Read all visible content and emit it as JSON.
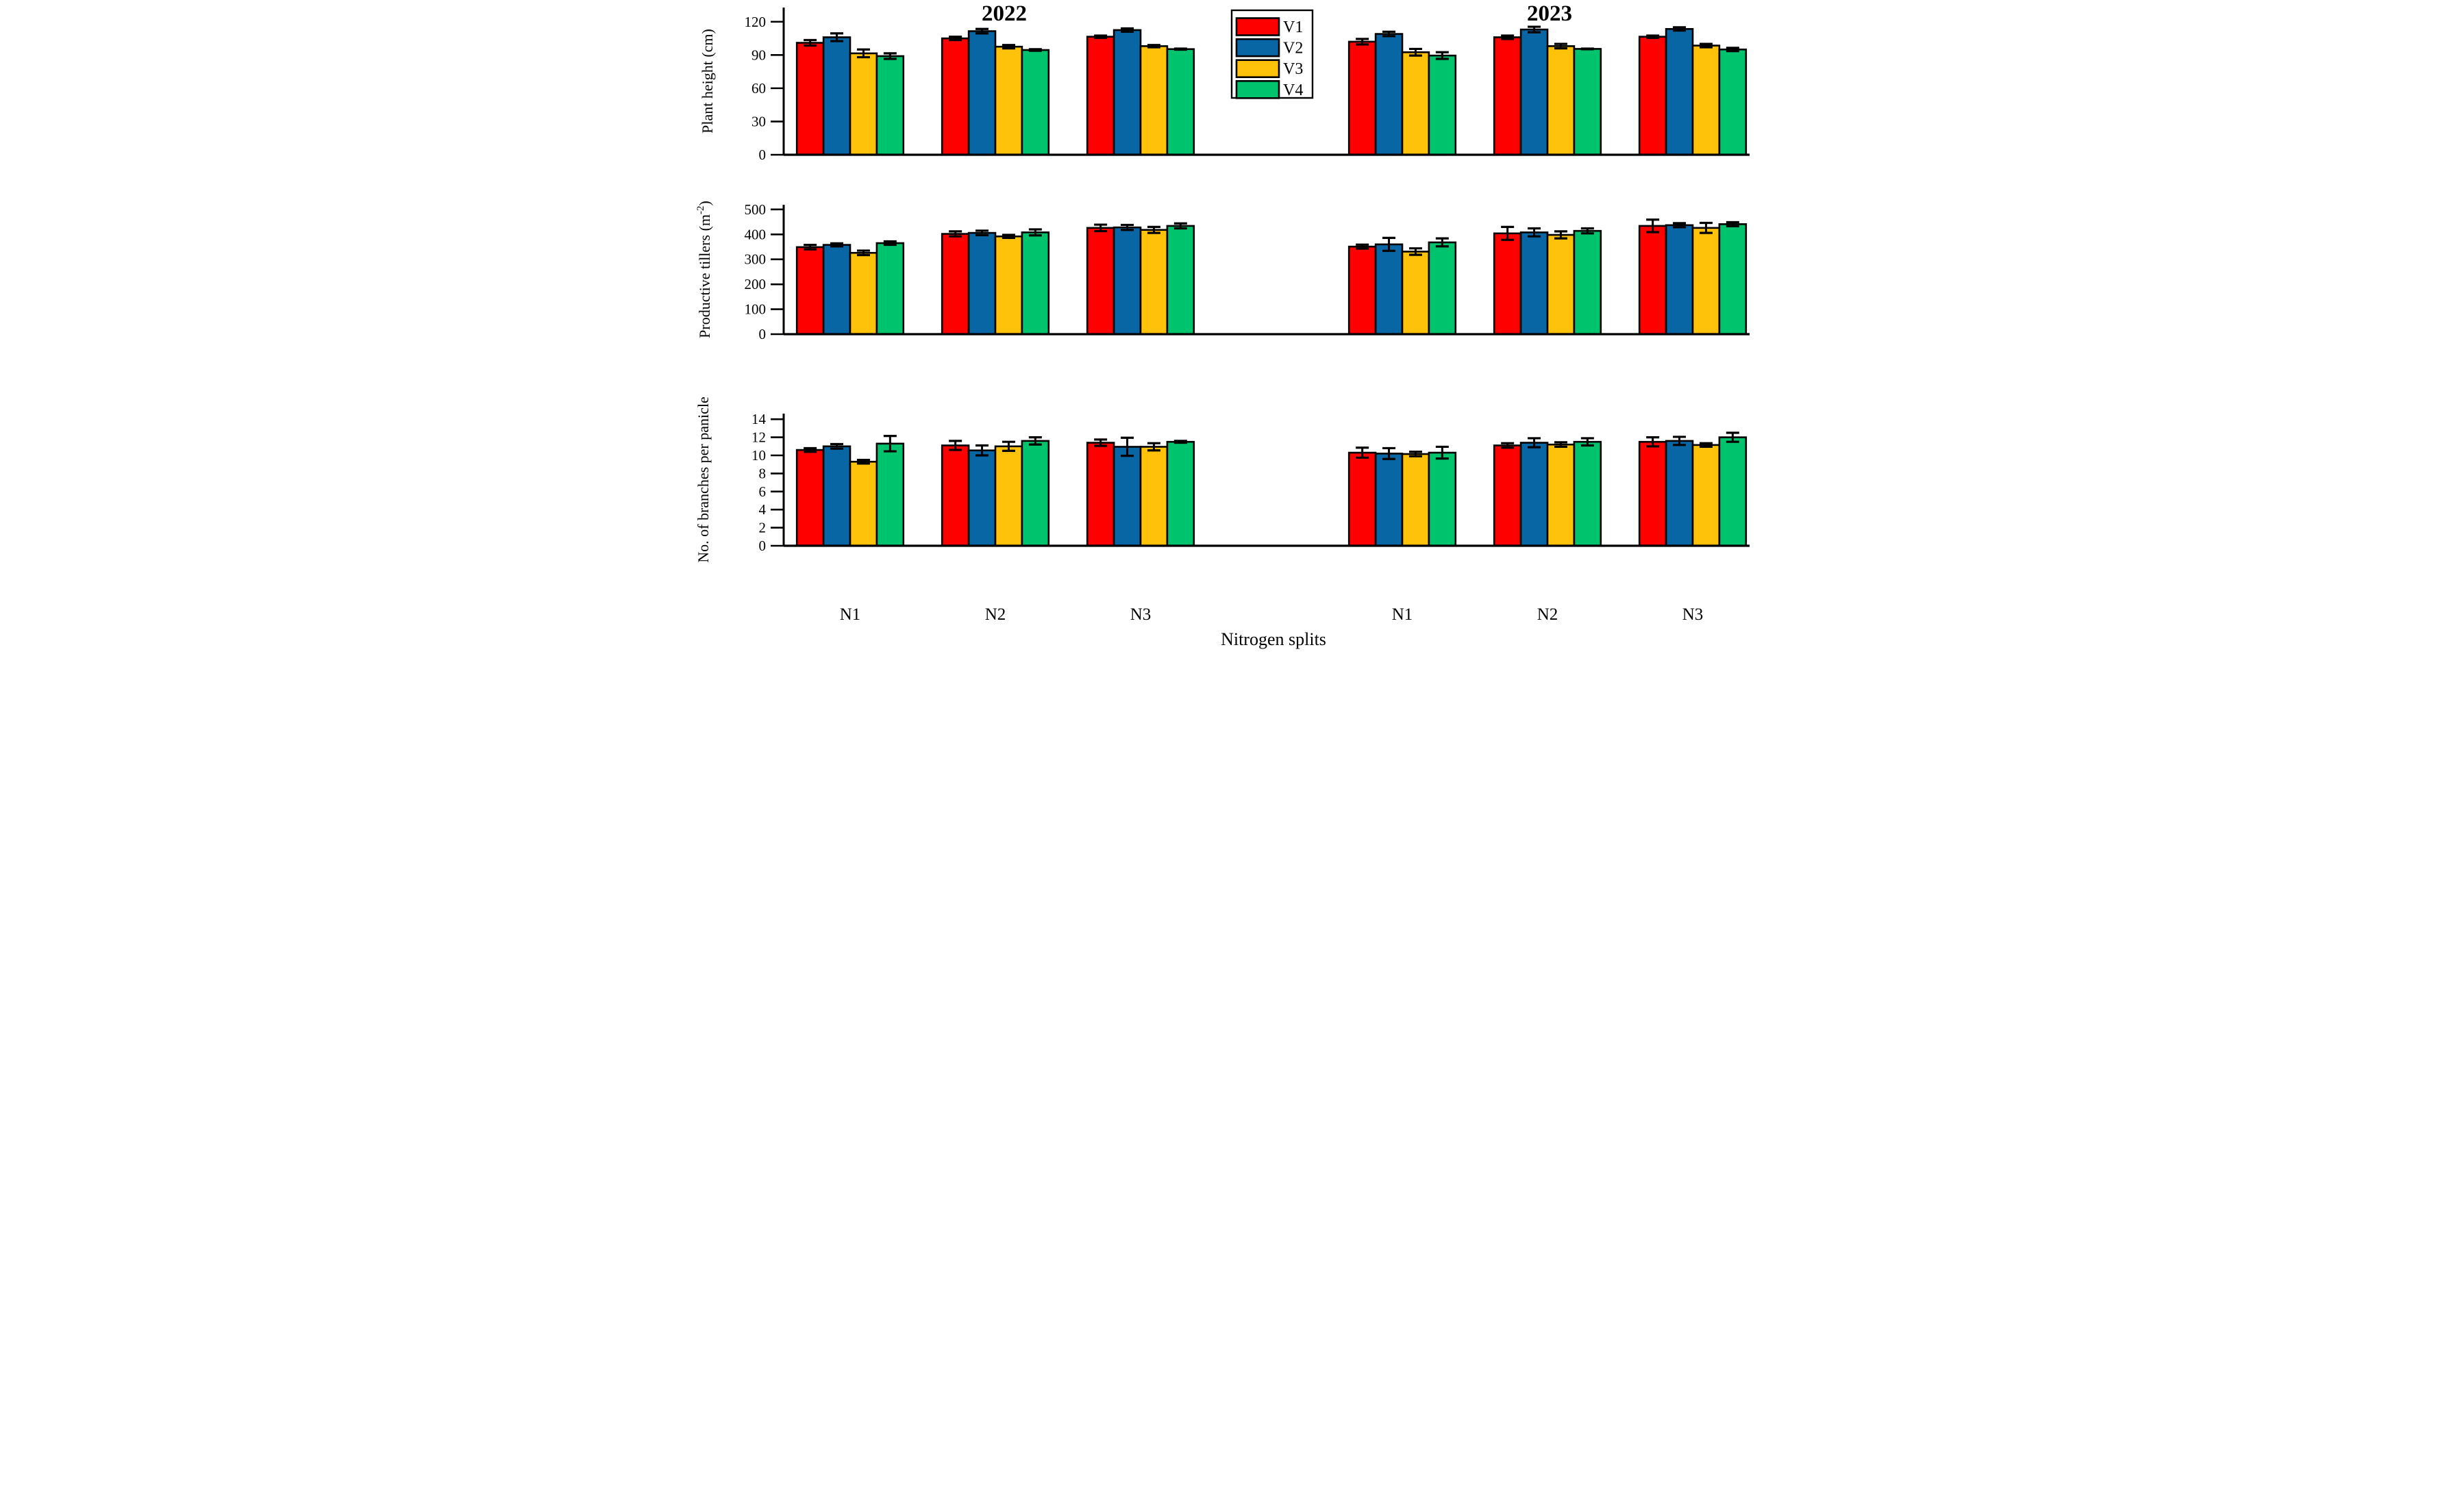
{
  "figure": {
    "xlabel": "Nitrogen splits",
    "year_titles": [
      "2022",
      "2023"
    ],
    "x_categories": [
      "N1",
      "N2",
      "N3"
    ],
    "legend": {
      "entries": [
        {
          "label": "V1",
          "color": "#FE0000"
        },
        {
          "label": "V2",
          "color": "#0866A4"
        },
        {
          "label": "V3",
          "color": "#FFC20A"
        },
        {
          "label": "V4",
          "color": "#00C36D"
        }
      ],
      "position": "top-center-left"
    },
    "accent_colors": {
      "bar_border": "#000000",
      "axis": "#000000"
    }
  },
  "chart_data": [
    {
      "type": "bar",
      "panel": "plant-height",
      "ylabel_parts": [
        {
          "t": "Plant height (cm)"
        }
      ],
      "ylim": [
        0,
        133
      ],
      "yticks": [
        0,
        30,
        60,
        90,
        120
      ],
      "grid": false,
      "categories": [
        "N1",
        "N2",
        "N3"
      ],
      "years": [
        "2022",
        "2023"
      ],
      "series": [
        {
          "name": "V1",
          "color": "#FE0000",
          "values_2022": [
            101,
            105,
            106.5
          ],
          "errors_2022": [
            2.5,
            1.5,
            1
          ],
          "values_2023": [
            102,
            106,
            106.5
          ],
          "errors_2023": [
            2.5,
            1.5,
            1
          ]
        },
        {
          "name": "V2",
          "color": "#0866A4",
          "values_2022": [
            106,
            111.5,
            112.5
          ],
          "errors_2022": [
            3.5,
            2,
            1.5
          ],
          "values_2023": [
            109,
            113,
            113.5
          ],
          "errors_2023": [
            2,
            2.5,
            1.5
          ]
        },
        {
          "name": "V3",
          "color": "#FFC20A",
          "values_2022": [
            91.5,
            97.5,
            98
          ],
          "errors_2022": [
            3.5,
            1.5,
            1
          ],
          "values_2023": [
            92.5,
            98,
            98.5
          ],
          "errors_2023": [
            3,
            2,
            1.5
          ]
        },
        {
          "name": "V4",
          "color": "#00C36D",
          "values_2022": [
            89,
            94.5,
            95.3
          ],
          "errors_2022": [
            2.5,
            0.7,
            0.5
          ],
          "values_2023": [
            89.5,
            95.5,
            95
          ],
          "errors_2023": [
            3,
            0.3,
            1.5
          ]
        }
      ]
    },
    {
      "type": "bar",
      "panel": "productive-tillers",
      "ylabel_parts": [
        {
          "t": "Productive tillers (m"
        },
        {
          "t": "-2",
          "sup": true
        },
        {
          "t": ")"
        }
      ],
      "ylim": [
        0,
        519
      ],
      "yticks": [
        0,
        100,
        200,
        300,
        400,
        500
      ],
      "grid": false,
      "categories": [
        "N1",
        "N2",
        "N3"
      ],
      "years": [
        "2022",
        "2023"
      ],
      "series": [
        {
          "name": "V1",
          "color": "#FE0000",
          "values_2022": [
            349,
            402,
            426
          ],
          "errors_2022": [
            9,
            10,
            13
          ],
          "values_2023": [
            351,
            404,
            434
          ],
          "errors_2023": [
            8,
            26,
            25
          ]
        },
        {
          "name": "V2",
          "color": "#0866A4",
          "values_2022": [
            358,
            406,
            428
          ],
          "errors_2022": [
            6,
            9,
            10
          ],
          "values_2023": [
            360,
            408,
            437
          ],
          "errors_2023": [
            26,
            16,
            8
          ]
        },
        {
          "name": "V3",
          "color": "#FFC20A",
          "values_2022": [
            326,
            392,
            418
          ],
          "errors_2022": [
            9,
            6,
            12
          ],
          "values_2023": [
            331,
            398,
            426
          ],
          "errors_2023": [
            13,
            14,
            20
          ]
        },
        {
          "name": "V4",
          "color": "#00C36D",
          "values_2022": [
            365,
            408,
            434
          ],
          "errors_2022": [
            7,
            12,
            10
          ],
          "values_2023": [
            368,
            414,
            441
          ],
          "errors_2023": [
            16,
            10,
            8
          ]
        }
      ]
    },
    {
      "type": "bar",
      "panel": "branches-per-panicle",
      "ylabel_parts": [
        {
          "t": "No. of branches per panicle"
        }
      ],
      "ylim": [
        0,
        14.6
      ],
      "yticks": [
        0,
        2,
        4,
        6,
        8,
        10,
        12,
        14
      ],
      "grid": false,
      "categories": [
        "N1",
        "N2",
        "N3"
      ],
      "years": [
        "2022",
        "2023"
      ],
      "series": [
        {
          "name": "V1",
          "color": "#FE0000",
          "values_2022": [
            10.6,
            11.1,
            11.4
          ],
          "errors_2022": [
            0.2,
            0.5,
            0.35
          ],
          "values_2023": [
            10.3,
            11.1,
            11.5
          ],
          "errors_2023": [
            0.55,
            0.25,
            0.5
          ]
        },
        {
          "name": "V2",
          "color": "#0866A4",
          "values_2022": [
            11.0,
            10.55,
            10.95
          ],
          "errors_2022": [
            0.25,
            0.55,
            1.0
          ],
          "values_2023": [
            10.2,
            11.4,
            11.6
          ],
          "errors_2023": [
            0.6,
            0.5,
            0.45
          ]
        },
        {
          "name": "V3",
          "color": "#FFC20A",
          "values_2022": [
            9.3,
            11.0,
            10.95
          ],
          "errors_2022": [
            0.2,
            0.5,
            0.4
          ],
          "values_2023": [
            10.15,
            11.2,
            11.15
          ],
          "errors_2023": [
            0.25,
            0.25,
            0.2
          ]
        },
        {
          "name": "V4",
          "color": "#00C36D",
          "values_2022": [
            11.3,
            11.6,
            11.5
          ],
          "errors_2022": [
            0.85,
            0.4,
            0.1
          ],
          "values_2023": [
            10.3,
            11.5,
            12.0
          ],
          "errors_2023": [
            0.65,
            0.4,
            0.5
          ]
        }
      ]
    }
  ]
}
